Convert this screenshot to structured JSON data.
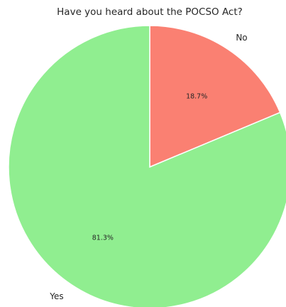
{
  "chart_data": {
    "type": "pie",
    "title": "Have you heard about the POCSO Act?",
    "slices": [
      {
        "label": "No",
        "value": 18.7,
        "pct_label": "18.7%",
        "color": "#FA8072"
      },
      {
        "label": "Yes",
        "value": 81.3,
        "pct_label": "81.3%",
        "color": "#90EE90"
      }
    ],
    "start_angle_deg": 90,
    "direction": "clockwise",
    "edge_color": "#ffffff"
  }
}
